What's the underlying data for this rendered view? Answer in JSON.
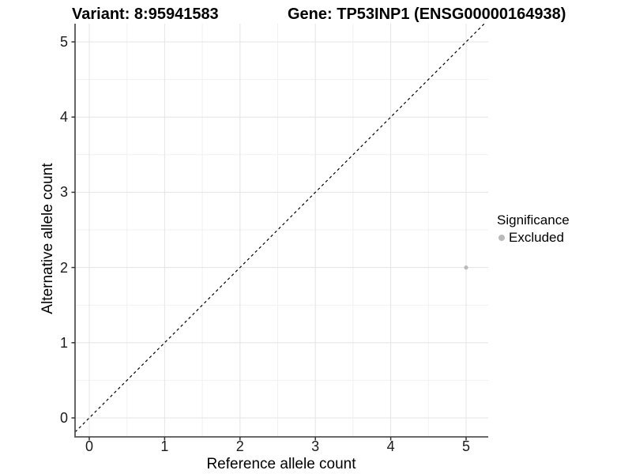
{
  "titles": {
    "variant": "Variant: 8:95941583",
    "gene": "Gene: TP53INP1 (ENSG00000164938)"
  },
  "axes": {
    "x": {
      "label": "Reference allele count",
      "ticks": [
        "0",
        "1",
        "2",
        "3",
        "4",
        "5"
      ]
    },
    "y": {
      "label": "Alternative allele count",
      "ticks": [
        "0",
        "1",
        "2",
        "3",
        "4",
        "5"
      ]
    }
  },
  "legend": {
    "title": "Significance",
    "items": [
      {
        "label": "Excluded",
        "color": "#bababa"
      }
    ]
  },
  "chart_data": {
    "type": "scatter",
    "title_left": "Variant: 8:95941583",
    "title_right": "Gene: TP53INP1 (ENSG00000164938)",
    "xlabel": "Reference allele count",
    "ylabel": "Alternative allele count",
    "xlim": [
      -0.25,
      5.3
    ],
    "ylim": [
      -0.25,
      5.25
    ],
    "x_ticks": [
      0,
      1,
      2,
      3,
      4,
      5
    ],
    "y_ticks": [
      0,
      1,
      2,
      3,
      4,
      5
    ],
    "grid": "major and minor gridlines, light grey on white",
    "legend_position": "right",
    "legend_title": "Significance",
    "series": [
      {
        "name": "Excluded",
        "color": "#bababa",
        "points": [
          {
            "x": 5,
            "y": 2
          }
        ]
      }
    ],
    "reference_line": {
      "kind": "identity y=x",
      "style": "dashed",
      "color": "#000000"
    }
  },
  "style": {
    "point_color": "#bababa",
    "grid_major_color": "#e6e6e6",
    "grid_minor_color": "#f1f1f1",
    "axis_line_color": "#565656",
    "tick_color": "#333333",
    "dashed_line_color": "#000000",
    "background": "#ffffff"
  }
}
